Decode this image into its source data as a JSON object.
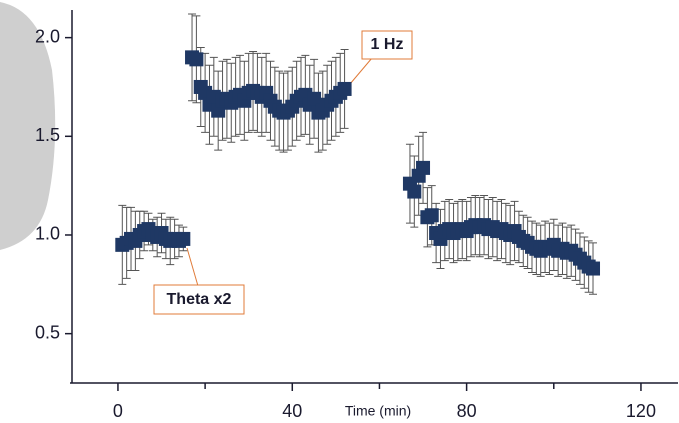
{
  "chart_data": {
    "type": "scatter",
    "xlabel": "Time (min)",
    "xlim": [
      -11,
      128.5
    ],
    "xticks": [
      0,
      40,
      80,
      120
    ],
    "xminor": [
      20,
      60,
      100
    ],
    "ylim": [
      0.25,
      2.14
    ],
    "yticks": [
      {
        "value": 0.5,
        "label": "0.5"
      },
      {
        "value": 1,
        "label": "1.0"
      },
      {
        "value": 1.5,
        "label": "1.5"
      },
      {
        "value": 2,
        "label": "2.0"
      }
    ],
    "color": "#1f3864",
    "x": [
      1,
      2,
      3,
      4,
      5,
      6,
      7,
      8,
      9,
      10,
      11,
      12,
      13,
      14,
      15,
      17,
      18,
      19,
      20,
      21,
      22,
      23,
      24,
      25,
      26,
      27,
      28,
      29,
      30,
      31,
      32,
      33,
      34,
      35,
      36,
      37,
      38,
      39,
      40,
      41,
      42,
      43,
      44,
      45,
      46,
      47,
      48,
      49,
      50,
      51,
      52,
      67,
      68,
      69,
      70,
      71,
      72,
      73,
      74,
      75,
      76,
      77,
      78,
      79,
      80,
      81,
      82,
      83,
      84,
      85,
      86,
      87,
      88,
      89,
      90,
      91,
      92,
      93,
      94,
      95,
      96,
      97,
      98,
      99,
      100,
      101,
      102,
      103,
      104,
      105,
      106,
      107,
      108,
      109
    ],
    "values": [
      0.95,
      0.96,
      0.98,
      0.97,
      1.0,
      1.02,
      1.03,
      1.0,
      0.99,
      1.01,
      0.98,
      0.97,
      0.98,
      0.97,
      0.98,
      1.9,
      1.89,
      1.75,
      1.72,
      1.66,
      1.7,
      1.63,
      1.68,
      1.69,
      1.67,
      1.7,
      1.71,
      1.68,
      1.72,
      1.73,
      1.72,
      1.7,
      1.72,
      1.68,
      1.65,
      1.63,
      1.62,
      1.63,
      1.65,
      1.68,
      1.7,
      1.71,
      1.66,
      1.69,
      1.62,
      1.63,
      1.66,
      1.68,
      1.7,
      1.72,
      1.74,
      1.26,
      1.22,
      1.3,
      1.34,
      1.09,
      1.1,
      1.01,
      0.98,
      1.02,
      1.03,
      1.01,
      1.02,
      1.03,
      1.02,
      1.04,
      1.05,
      1.04,
      1.05,
      1.03,
      1.04,
      1.02,
      1.03,
      1.01,
      1.0,
      1.02,
      0.99,
      0.97,
      0.96,
      0.94,
      0.93,
      0.92,
      0.94,
      0.93,
      0.95,
      0.92,
      0.93,
      0.91,
      0.92,
      0.9,
      0.88,
      0.86,
      0.84,
      0.83
    ],
    "errors": [
      0.2,
      0.18,
      0.16,
      0.15,
      0.12,
      0.1,
      0.08,
      0.08,
      0.1,
      0.1,
      0.1,
      0.12,
      0.1,
      0.08,
      0.06,
      0.22,
      0.22,
      0.2,
      0.2,
      0.2,
      0.2,
      0.2,
      0.2,
      0.2,
      0.2,
      0.2,
      0.2,
      0.2,
      0.2,
      0.2,
      0.2,
      0.2,
      0.2,
      0.2,
      0.2,
      0.2,
      0.2,
      0.2,
      0.2,
      0.2,
      0.2,
      0.2,
      0.2,
      0.2,
      0.2,
      0.2,
      0.2,
      0.2,
      0.2,
      0.2,
      0.2,
      0.2,
      0.18,
      0.2,
      0.18,
      0.15,
      0.15,
      0.15,
      0.15,
      0.15,
      0.15,
      0.15,
      0.15,
      0.15,
      0.15,
      0.15,
      0.15,
      0.15,
      0.15,
      0.15,
      0.15,
      0.15,
      0.15,
      0.15,
      0.15,
      0.15,
      0.13,
      0.13,
      0.13,
      0.13,
      0.13,
      0.13,
      0.13,
      0.13,
      0.13,
      0.13,
      0.13,
      0.13,
      0.13,
      0.13,
      0.13,
      0.13,
      0.13,
      0.13
    ],
    "annotations": [
      {
        "text": "1 Hz"
      },
      {
        "text": "Theta x2"
      }
    ]
  }
}
